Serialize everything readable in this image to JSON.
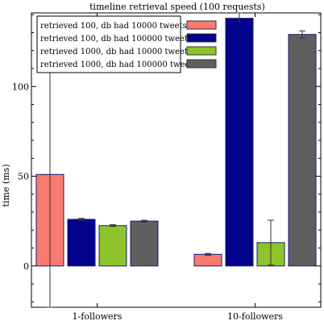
{
  "chart_data": {
    "type": "bar",
    "title": "timeline retrieval speed (100 requests)",
    "xlabel": "",
    "ylabel": "time (ms)",
    "ylim": [
      -23,
      141
    ],
    "yticks": [
      0,
      50,
      100
    ],
    "grid": false,
    "legend_position": "top-left",
    "categories": [
      "1-followers",
      "10-followers"
    ],
    "series": [
      {
        "name": "retrieved 100, db had 10000 tweets",
        "color": "#f87a70",
        "values": [
          51,
          6.5
        ],
        "errors": [
          [
            -23,
            125
          ],
          [
            6,
            7
          ]
        ]
      },
      {
        "name": "retrieved 100, db had 100000 tweets",
        "color": "#03028a",
        "values": [
          26,
          138
        ],
        "errors": [
          [
            25.5,
            26.5
          ],
          [
            136,
            141
          ]
        ]
      },
      {
        "name": "retrieved 1000, db had 10000 tweets",
        "color": "#8ec42a",
        "values": [
          22.5,
          13
        ],
        "errors": [
          [
            22,
            23
          ],
          [
            0.5,
            25.5
          ]
        ]
      },
      {
        "name": "retrieved 1000, db had 100000 tweets",
        "color": "#5f5f5f",
        "values": [
          25,
          129
        ],
        "errors": [
          [
            24.5,
            25.5
          ],
          [
            127,
            131
          ]
        ]
      }
    ]
  }
}
